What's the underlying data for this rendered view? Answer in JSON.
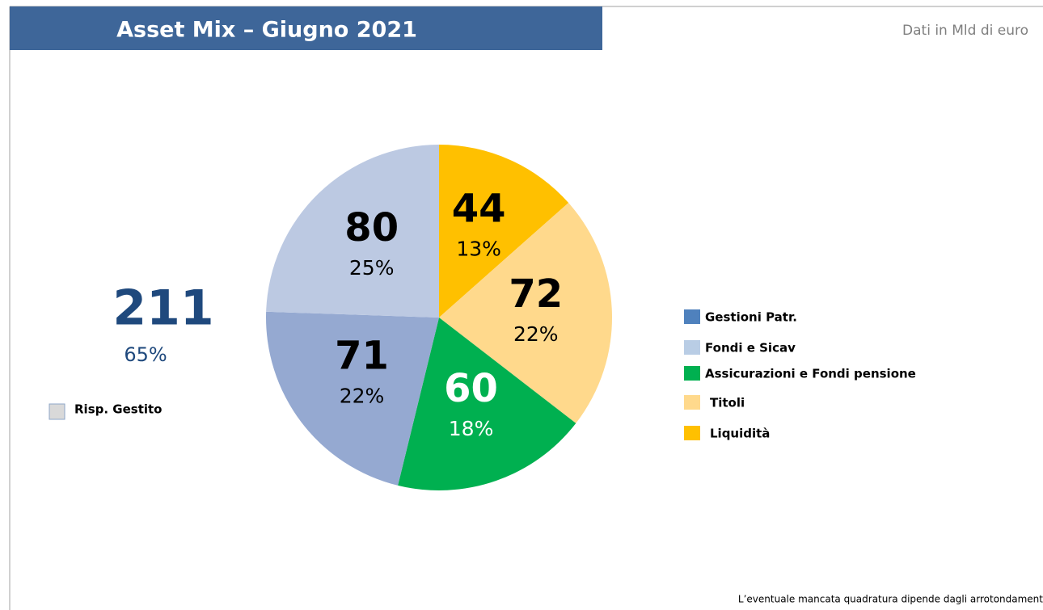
{
  "chart_data": {
    "type": "pie",
    "title": "Asset Mix – Giugno 2021",
    "unit_note": "Dati in Mld di euro",
    "footnote": "L’eventuale mancata quadratura dipende dagli arrotondament",
    "values": [
      44,
      72,
      60,
      71,
      80
    ],
    "percents": [
      13,
      22,
      18,
      22,
      25
    ],
    "colors": [
      "#FFC000",
      "#FFD98C",
      "#00B050",
      "#95A9D1",
      "#BCC9E2"
    ],
    "label_colors": [
      "#000000",
      "#000000",
      "#FFFFFF",
      "#000000",
      "#000000"
    ],
    "legend": [
      {
        "name": "Gestioni Patr.",
        "color": "#4F81BD"
      },
      {
        "name": "Fondi e Sicav",
        "color": "#B9CDE5"
      },
      {
        "name": "Assicurazioni e Fondi pensione",
        "color": "#00B050"
      },
      {
        "name": "Titoli",
        "color": "#FFD98C"
      },
      {
        "name": "Liquidità",
        "color": "#FFC000"
      }
    ],
    "total": {
      "value": 211,
      "percent": 65,
      "name": "Risp. Gestito",
      "color": "#D9D9D9",
      "text_color": "#1F497D"
    }
  }
}
